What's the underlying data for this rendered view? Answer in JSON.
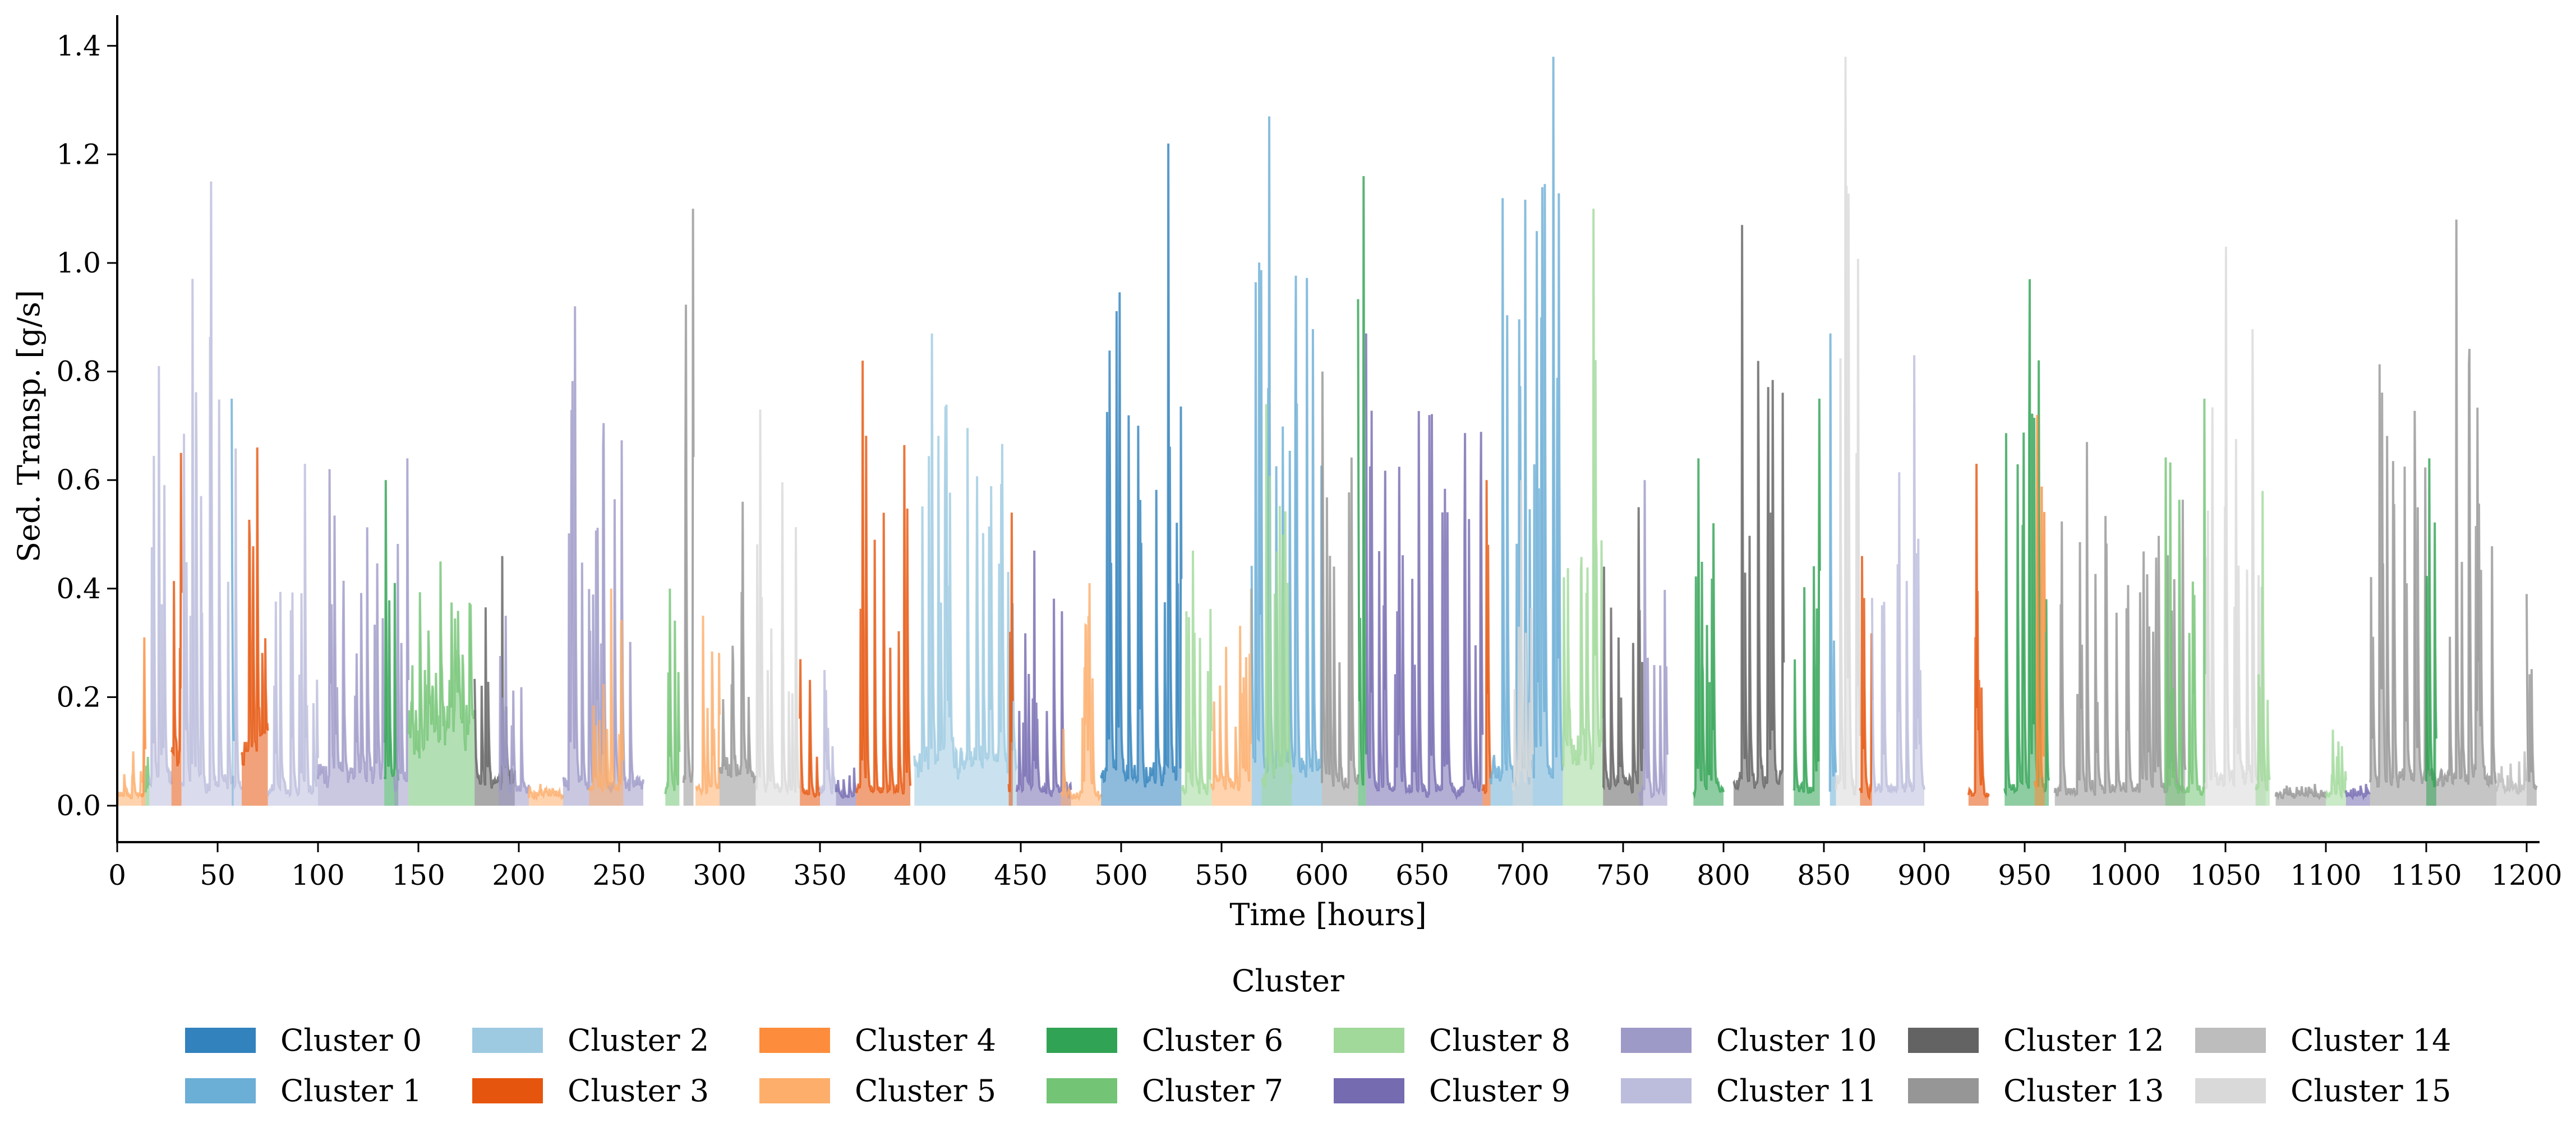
{
  "chart_data": {
    "type": "area",
    "title": "",
    "xlabel": "Time [hours]",
    "ylabel": "Sed. Transp. [g/s]",
    "xlim": [
      0,
      1205
    ],
    "ylim": [
      -0.067,
      1.45
    ],
    "xticks": [
      0,
      50,
      100,
      150,
      200,
      250,
      300,
      350,
      400,
      450,
      500,
      550,
      600,
      650,
      700,
      750,
      800,
      850,
      900,
      950,
      1000,
      1050,
      1100,
      1150,
      1200
    ],
    "xtick_labels": [
      "0",
      "50",
      "100",
      "150",
      "200",
      "250",
      "300",
      "350",
      "400",
      "450",
      "500",
      "550",
      "600",
      "650",
      "700",
      "750",
      "800",
      "850",
      "900",
      "950",
      "1000",
      "1050",
      "1100",
      "1150",
      "1200"
    ],
    "yticks": [
      0.0,
      0.2,
      0.4,
      0.6,
      0.8,
      1.0,
      1.2,
      1.4
    ],
    "ytick_labels": [
      "0.0",
      "0.2",
      "0.4",
      "0.6",
      "0.8",
      "1.0",
      "1.2",
      "1.4"
    ],
    "grid": false,
    "legend": {
      "title": "Cluster",
      "placement": "bottom-center",
      "columns": 8
    },
    "series": [
      {
        "name": "Cluster 0",
        "color": "#3182bd"
      },
      {
        "name": "Cluster 1",
        "color": "#6baed6"
      },
      {
        "name": "Cluster 2",
        "color": "#9ecae1"
      },
      {
        "name": "Cluster 3",
        "color": "#e6550d"
      },
      {
        "name": "Cluster 4",
        "color": "#fd8d3c"
      },
      {
        "name": "Cluster 5",
        "color": "#fdae6b"
      },
      {
        "name": "Cluster 6",
        "color": "#31a354"
      },
      {
        "name": "Cluster 7",
        "color": "#74c476"
      },
      {
        "name": "Cluster 8",
        "color": "#a1d99b"
      },
      {
        "name": "Cluster 9",
        "color": "#756bb1"
      },
      {
        "name": "Cluster 10",
        "color": "#9e9ac8"
      },
      {
        "name": "Cluster 11",
        "color": "#bcbddc"
      },
      {
        "name": "Cluster 12",
        "color": "#636363"
      },
      {
        "name": "Cluster 13",
        "color": "#969696"
      },
      {
        "name": "Cluster 14",
        "color": "#bdbdbd"
      },
      {
        "name": "Cluster 15",
        "color": "#d9d9d9"
      }
    ],
    "segments": [
      {
        "cluster": 5,
        "start": 0,
        "end": 12,
        "peak": 0.1,
        "base": 0.02
      },
      {
        "cluster": 4,
        "start": 12,
        "end": 14,
        "peak": 0.31,
        "base": 0.02
      },
      {
        "cluster": 7,
        "start": 14,
        "end": 16,
        "peak": 0.09,
        "base": 0.02
      },
      {
        "cluster": 11,
        "start": 16,
        "end": 27,
        "peak": 0.81,
        "base": 0.05
      },
      {
        "cluster": 3,
        "start": 27,
        "end": 32,
        "peak": 0.65,
        "base": 0.08
      },
      {
        "cluster": 11,
        "start": 32,
        "end": 62,
        "peak": 1.15,
        "base": 0.04
      },
      {
        "cluster": 1,
        "start": 57,
        "end": 58,
        "peak": 0.75,
        "base": 0.05
      },
      {
        "cluster": 3,
        "start": 62,
        "end": 75,
        "peak": 0.66,
        "base": 0.1
      },
      {
        "cluster": 11,
        "start": 75,
        "end": 100,
        "peak": 0.63,
        "base": 0.03
      },
      {
        "cluster": 10,
        "start": 100,
        "end": 133,
        "peak": 0.62,
        "base": 0.06
      },
      {
        "cluster": 6,
        "start": 133,
        "end": 140,
        "peak": 0.6,
        "base": 0.05
      },
      {
        "cluster": 10,
        "start": 138,
        "end": 145,
        "peak": 0.64,
        "base": 0.05
      },
      {
        "cluster": 7,
        "start": 145,
        "end": 178,
        "peak": 0.45,
        "base": 0.15
      },
      {
        "cluster": 12,
        "start": 178,
        "end": 198,
        "peak": 0.46,
        "base": 0.05
      },
      {
        "cluster": 10,
        "start": 190,
        "end": 205,
        "peak": 0.35,
        "base": 0.03
      },
      {
        "cluster": 5,
        "start": 205,
        "end": 222,
        "peak": 0.04,
        "base": 0.02
      },
      {
        "cluster": 10,
        "start": 222,
        "end": 262,
        "peak": 0.92,
        "base": 0.04
      },
      {
        "cluster": 5,
        "start": 235,
        "end": 252,
        "peak": 0.4,
        "base": 0.03
      },
      {
        "cluster": 7,
        "start": 273,
        "end": 280,
        "peak": 0.4,
        "base": 0.03
      },
      {
        "cluster": 13,
        "start": 282,
        "end": 287,
        "peak": 1.1,
        "base": 0.05
      },
      {
        "cluster": 5,
        "start": 288,
        "end": 300,
        "peak": 0.35,
        "base": 0.03
      },
      {
        "cluster": 13,
        "start": 300,
        "end": 318,
        "peak": 0.56,
        "base": 0.06
      },
      {
        "cluster": 15,
        "start": 318,
        "end": 340,
        "peak": 0.73,
        "base": 0.03
      },
      {
        "cluster": 3,
        "start": 340,
        "end": 350,
        "peak": 0.27,
        "base": 0.02
      },
      {
        "cluster": 11,
        "start": 350,
        "end": 358,
        "peak": 0.25,
        "base": 0.03
      },
      {
        "cluster": 9,
        "start": 358,
        "end": 368,
        "peak": 0.07,
        "base": 0.02
      },
      {
        "cluster": 3,
        "start": 368,
        "end": 395,
        "peak": 0.82,
        "base": 0.03
      },
      {
        "cluster": 2,
        "start": 397,
        "end": 448,
        "peak": 0.87,
        "base": 0.08
      },
      {
        "cluster": 3,
        "start": 444,
        "end": 446,
        "peak": 0.54,
        "base": 0.03
      },
      {
        "cluster": 9,
        "start": 448,
        "end": 475,
        "peak": 0.47,
        "base": 0.03
      },
      {
        "cluster": 5,
        "start": 470,
        "end": 490,
        "peak": 0.41,
        "base": 0.02
      },
      {
        "cluster": 0,
        "start": 490,
        "end": 530,
        "peak": 1.22,
        "base": 0.06
      },
      {
        "cluster": 8,
        "start": 530,
        "end": 545,
        "peak": 0.47,
        "base": 0.03
      },
      {
        "cluster": 5,
        "start": 545,
        "end": 565,
        "peak": 0.4,
        "base": 0.04
      },
      {
        "cluster": 1,
        "start": 565,
        "end": 600,
        "peak": 1.27,
        "base": 0.07
      },
      {
        "cluster": 8,
        "start": 570,
        "end": 585,
        "peak": 0.74,
        "base": 0.05
      },
      {
        "cluster": 13,
        "start": 600,
        "end": 618,
        "peak": 0.8,
        "base": 0.04
      },
      {
        "cluster": 6,
        "start": 618,
        "end": 622,
        "peak": 1.16,
        "base": 0.04
      },
      {
        "cluster": 9,
        "start": 622,
        "end": 680,
        "peak": 0.87,
        "base": 0.03
      },
      {
        "cluster": 3,
        "start": 680,
        "end": 684,
        "peak": 0.6,
        "base": 0.03
      },
      {
        "cluster": 1,
        "start": 684,
        "end": 720,
        "peak": 1.38,
        "base": 0.06
      },
      {
        "cluster": 15,
        "start": 695,
        "end": 705,
        "peak": 0.6,
        "base": 0.04
      },
      {
        "cluster": 8,
        "start": 720,
        "end": 740,
        "peak": 1.1,
        "base": 0.1
      },
      {
        "cluster": 12,
        "start": 740,
        "end": 760,
        "peak": 0.55,
        "base": 0.04
      },
      {
        "cluster": 10,
        "start": 758,
        "end": 772,
        "peak": 0.6,
        "base": 0.03
      },
      {
        "cluster": 6,
        "start": 785,
        "end": 800,
        "peak": 0.64,
        "base": 0.03
      },
      {
        "cluster": 12,
        "start": 805,
        "end": 830,
        "peak": 1.07,
        "base": 0.05
      },
      {
        "cluster": 6,
        "start": 835,
        "end": 848,
        "peak": 0.75,
        "base": 0.03
      },
      {
        "cluster": 1,
        "start": 853,
        "end": 856,
        "peak": 0.87,
        "base": 0.03
      },
      {
        "cluster": 15,
        "start": 856,
        "end": 868,
        "peak": 1.38,
        "base": 0.04
      },
      {
        "cluster": 3,
        "start": 868,
        "end": 874,
        "peak": 0.46,
        "base": 0.03
      },
      {
        "cluster": 11,
        "start": 874,
        "end": 900,
        "peak": 0.83,
        "base": 0.03
      },
      {
        "cluster": 3,
        "start": 922,
        "end": 932,
        "peak": 0.63,
        "base": 0.02
      },
      {
        "cluster": 6,
        "start": 940,
        "end": 962,
        "peak": 0.97,
        "base": 0.03
      },
      {
        "cluster": 4,
        "start": 955,
        "end": 960,
        "peak": 0.72,
        "base": 0.04
      },
      {
        "cluster": 13,
        "start": 965,
        "end": 1030,
        "peak": 0.67,
        "base": 0.03
      },
      {
        "cluster": 7,
        "start": 1020,
        "end": 1040,
        "peak": 0.75,
        "base": 0.03
      },
      {
        "cluster": 15,
        "start": 1040,
        "end": 1070,
        "peak": 1.03,
        "base": 0.05
      },
      {
        "cluster": 8,
        "start": 1065,
        "end": 1072,
        "peak": 0.58,
        "base": 0.03
      },
      {
        "cluster": 13,
        "start": 1075,
        "end": 1100,
        "peak": 0.04,
        "base": 0.02
      },
      {
        "cluster": 8,
        "start": 1100,
        "end": 1110,
        "peak": 0.14,
        "base": 0.02
      },
      {
        "cluster": 9,
        "start": 1110,
        "end": 1122,
        "peak": 0.04,
        "base": 0.02
      },
      {
        "cluster": 13,
        "start": 1122,
        "end": 1185,
        "peak": 1.08,
        "base": 0.05
      },
      {
        "cluster": 6,
        "start": 1150,
        "end": 1155,
        "peak": 0.64,
        "base": 0.04
      },
      {
        "cluster": 14,
        "start": 1185,
        "end": 1200,
        "peak": 0.1,
        "base": 0.03
      },
      {
        "cluster": 13,
        "start": 1200,
        "end": 1205,
        "peak": 0.39,
        "base": 0.03
      }
    ]
  }
}
